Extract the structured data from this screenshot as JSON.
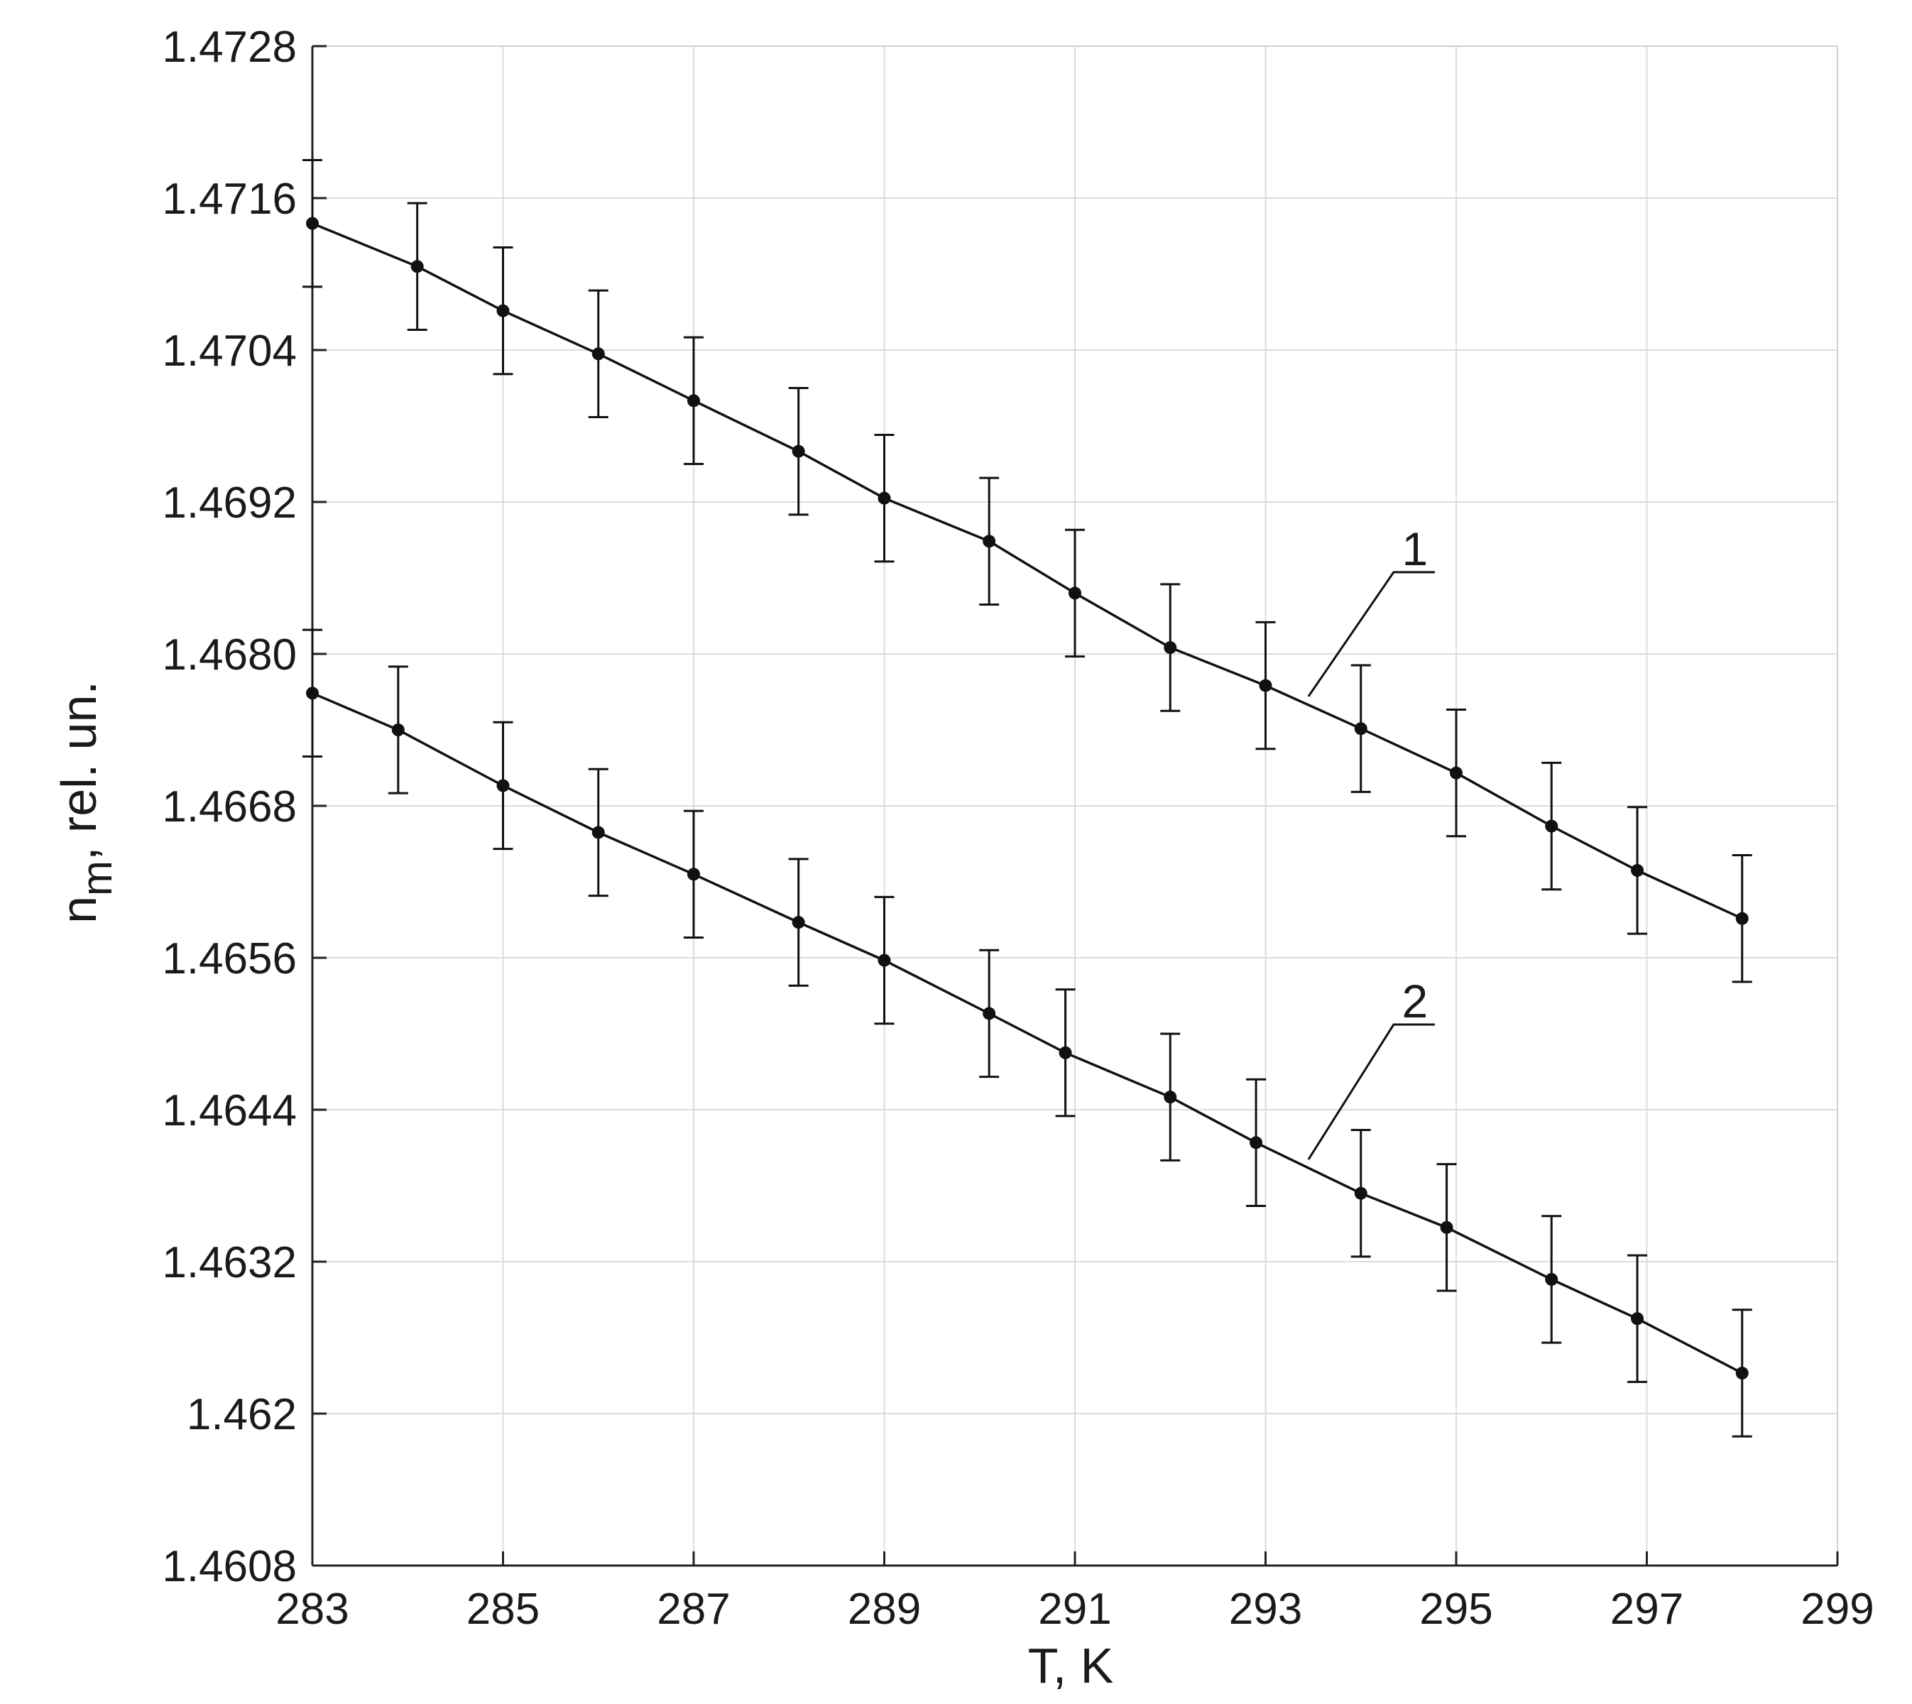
{
  "chart_data": {
    "type": "line",
    "xlabel": "T, K",
    "ylabel_main": "n",
    "ylabel_sub": "m",
    "ylabel_rest": ", rel. un.",
    "xlim": [
      283,
      299
    ],
    "ylim": [
      1.4608,
      1.4728
    ],
    "x_ticks": [
      "283",
      "285",
      "287",
      "289",
      "291",
      "293",
      "295",
      "297",
      "299"
    ],
    "y_ticks": [
      "1.4608",
      "1.462",
      "1.4632",
      "1.4644",
      "1.4656",
      "1.4668",
      "1.4680",
      "1.4692",
      "1.4704",
      "1.4716",
      "1.4728"
    ],
    "grid": true,
    "error_bar": 0.0005,
    "series": [
      {
        "label": "1",
        "x": [
          283,
          284.1,
          285,
          286,
          287,
          288.1,
          289,
          290.1,
          291,
          292,
          293,
          294,
          295,
          296,
          296.9,
          298
        ],
        "y": [
          1.4714,
          1.47106,
          1.47071,
          1.47037,
          1.47,
          1.4696,
          1.46923,
          1.46889,
          1.46848,
          1.46805,
          1.46775,
          1.46741,
          1.46706,
          1.46664,
          1.46629,
          1.46591
        ]
      },
      {
        "label": "2",
        "x": [
          283,
          283.9,
          285,
          286,
          287,
          288.1,
          289,
          290.1,
          290.9,
          292,
          292.9,
          294,
          294.9,
          296,
          296.9,
          298
        ],
        "y": [
          1.46769,
          1.4674,
          1.46696,
          1.46659,
          1.46626,
          1.46588,
          1.46558,
          1.46516,
          1.46485,
          1.4645,
          1.46414,
          1.46374,
          1.46347,
          1.46306,
          1.46275,
          1.46232
        ]
      }
    ]
  }
}
